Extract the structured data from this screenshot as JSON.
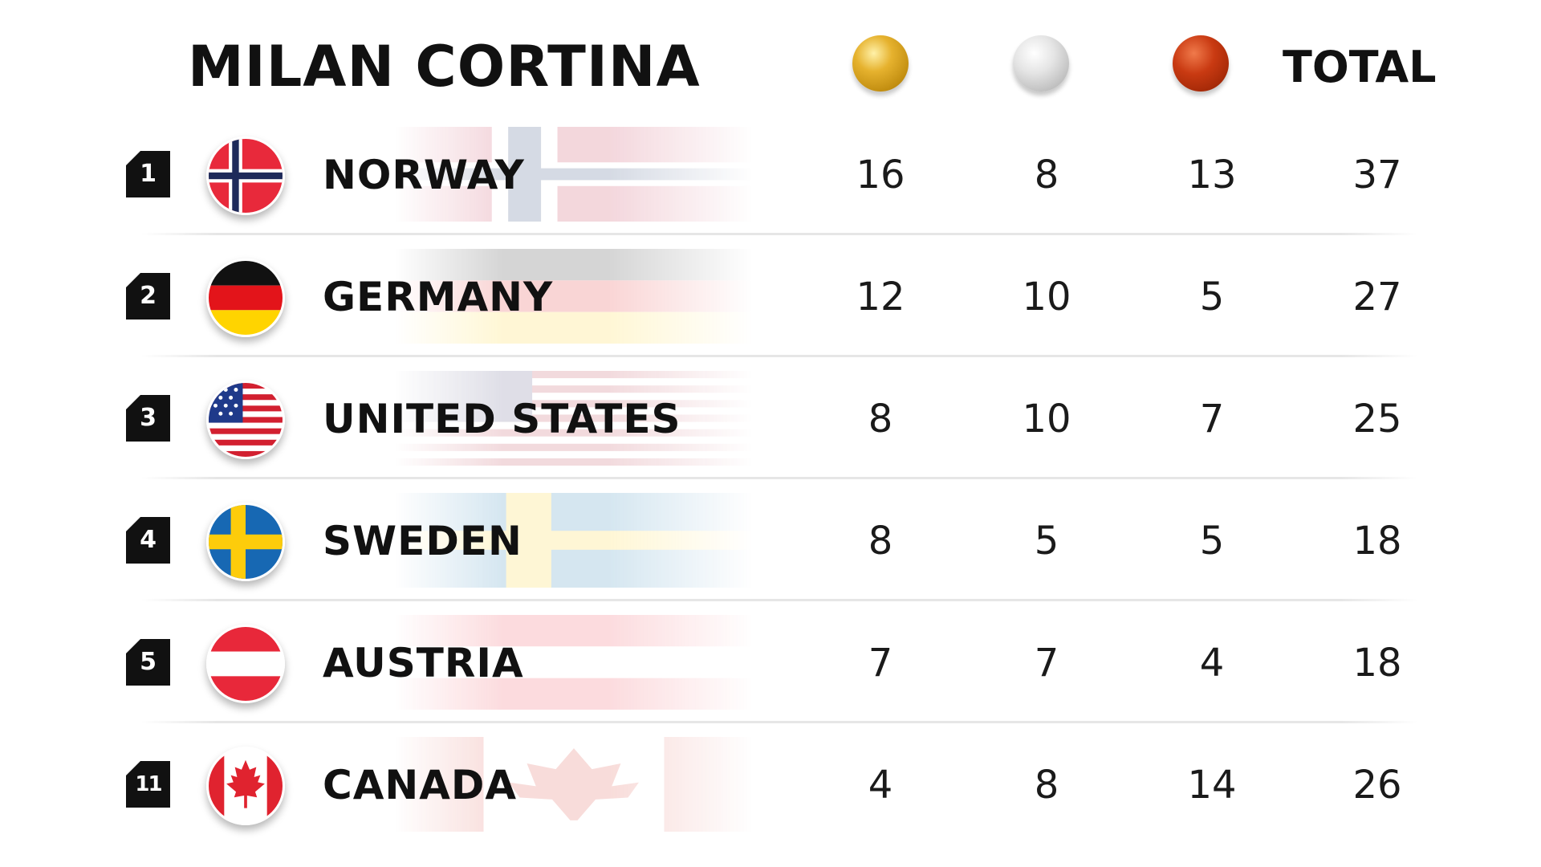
{
  "header": {
    "title": "MILAN CORTINA",
    "total_label": "TOTAL",
    "medal_icons": [
      "gold-medal-icon",
      "silver-medal-icon",
      "bronze-medal-icon"
    ]
  },
  "colors": {
    "gold": "#d9a520",
    "silver": "#cfcfcf",
    "bronze": "#b73310",
    "badge": "#111111"
  },
  "rows": [
    {
      "rank": "1",
      "country": "NORWAY",
      "flag": "norway-flag-icon",
      "gold": "16",
      "silver": "8",
      "bronze": "13",
      "total": "37"
    },
    {
      "rank": "2",
      "country": "GERMANY",
      "flag": "germany-flag-icon",
      "gold": "12",
      "silver": "10",
      "bronze": "5",
      "total": "27"
    },
    {
      "rank": "3",
      "country": "UNITED STATES",
      "flag": "united-states-flag-icon",
      "gold": "8",
      "silver": "10",
      "bronze": "7",
      "total": "25"
    },
    {
      "rank": "4",
      "country": "SWEDEN",
      "flag": "sweden-flag-icon",
      "gold": "8",
      "silver": "5",
      "bronze": "5",
      "total": "18"
    },
    {
      "rank": "5",
      "country": "AUSTRIA",
      "flag": "austria-flag-icon",
      "gold": "7",
      "silver": "7",
      "bronze": "4",
      "total": "18"
    },
    {
      "rank": "11",
      "country": "CANADA",
      "flag": "canada-flag-icon",
      "gold": "4",
      "silver": "8",
      "bronze": "14",
      "total": "26"
    }
  ]
}
